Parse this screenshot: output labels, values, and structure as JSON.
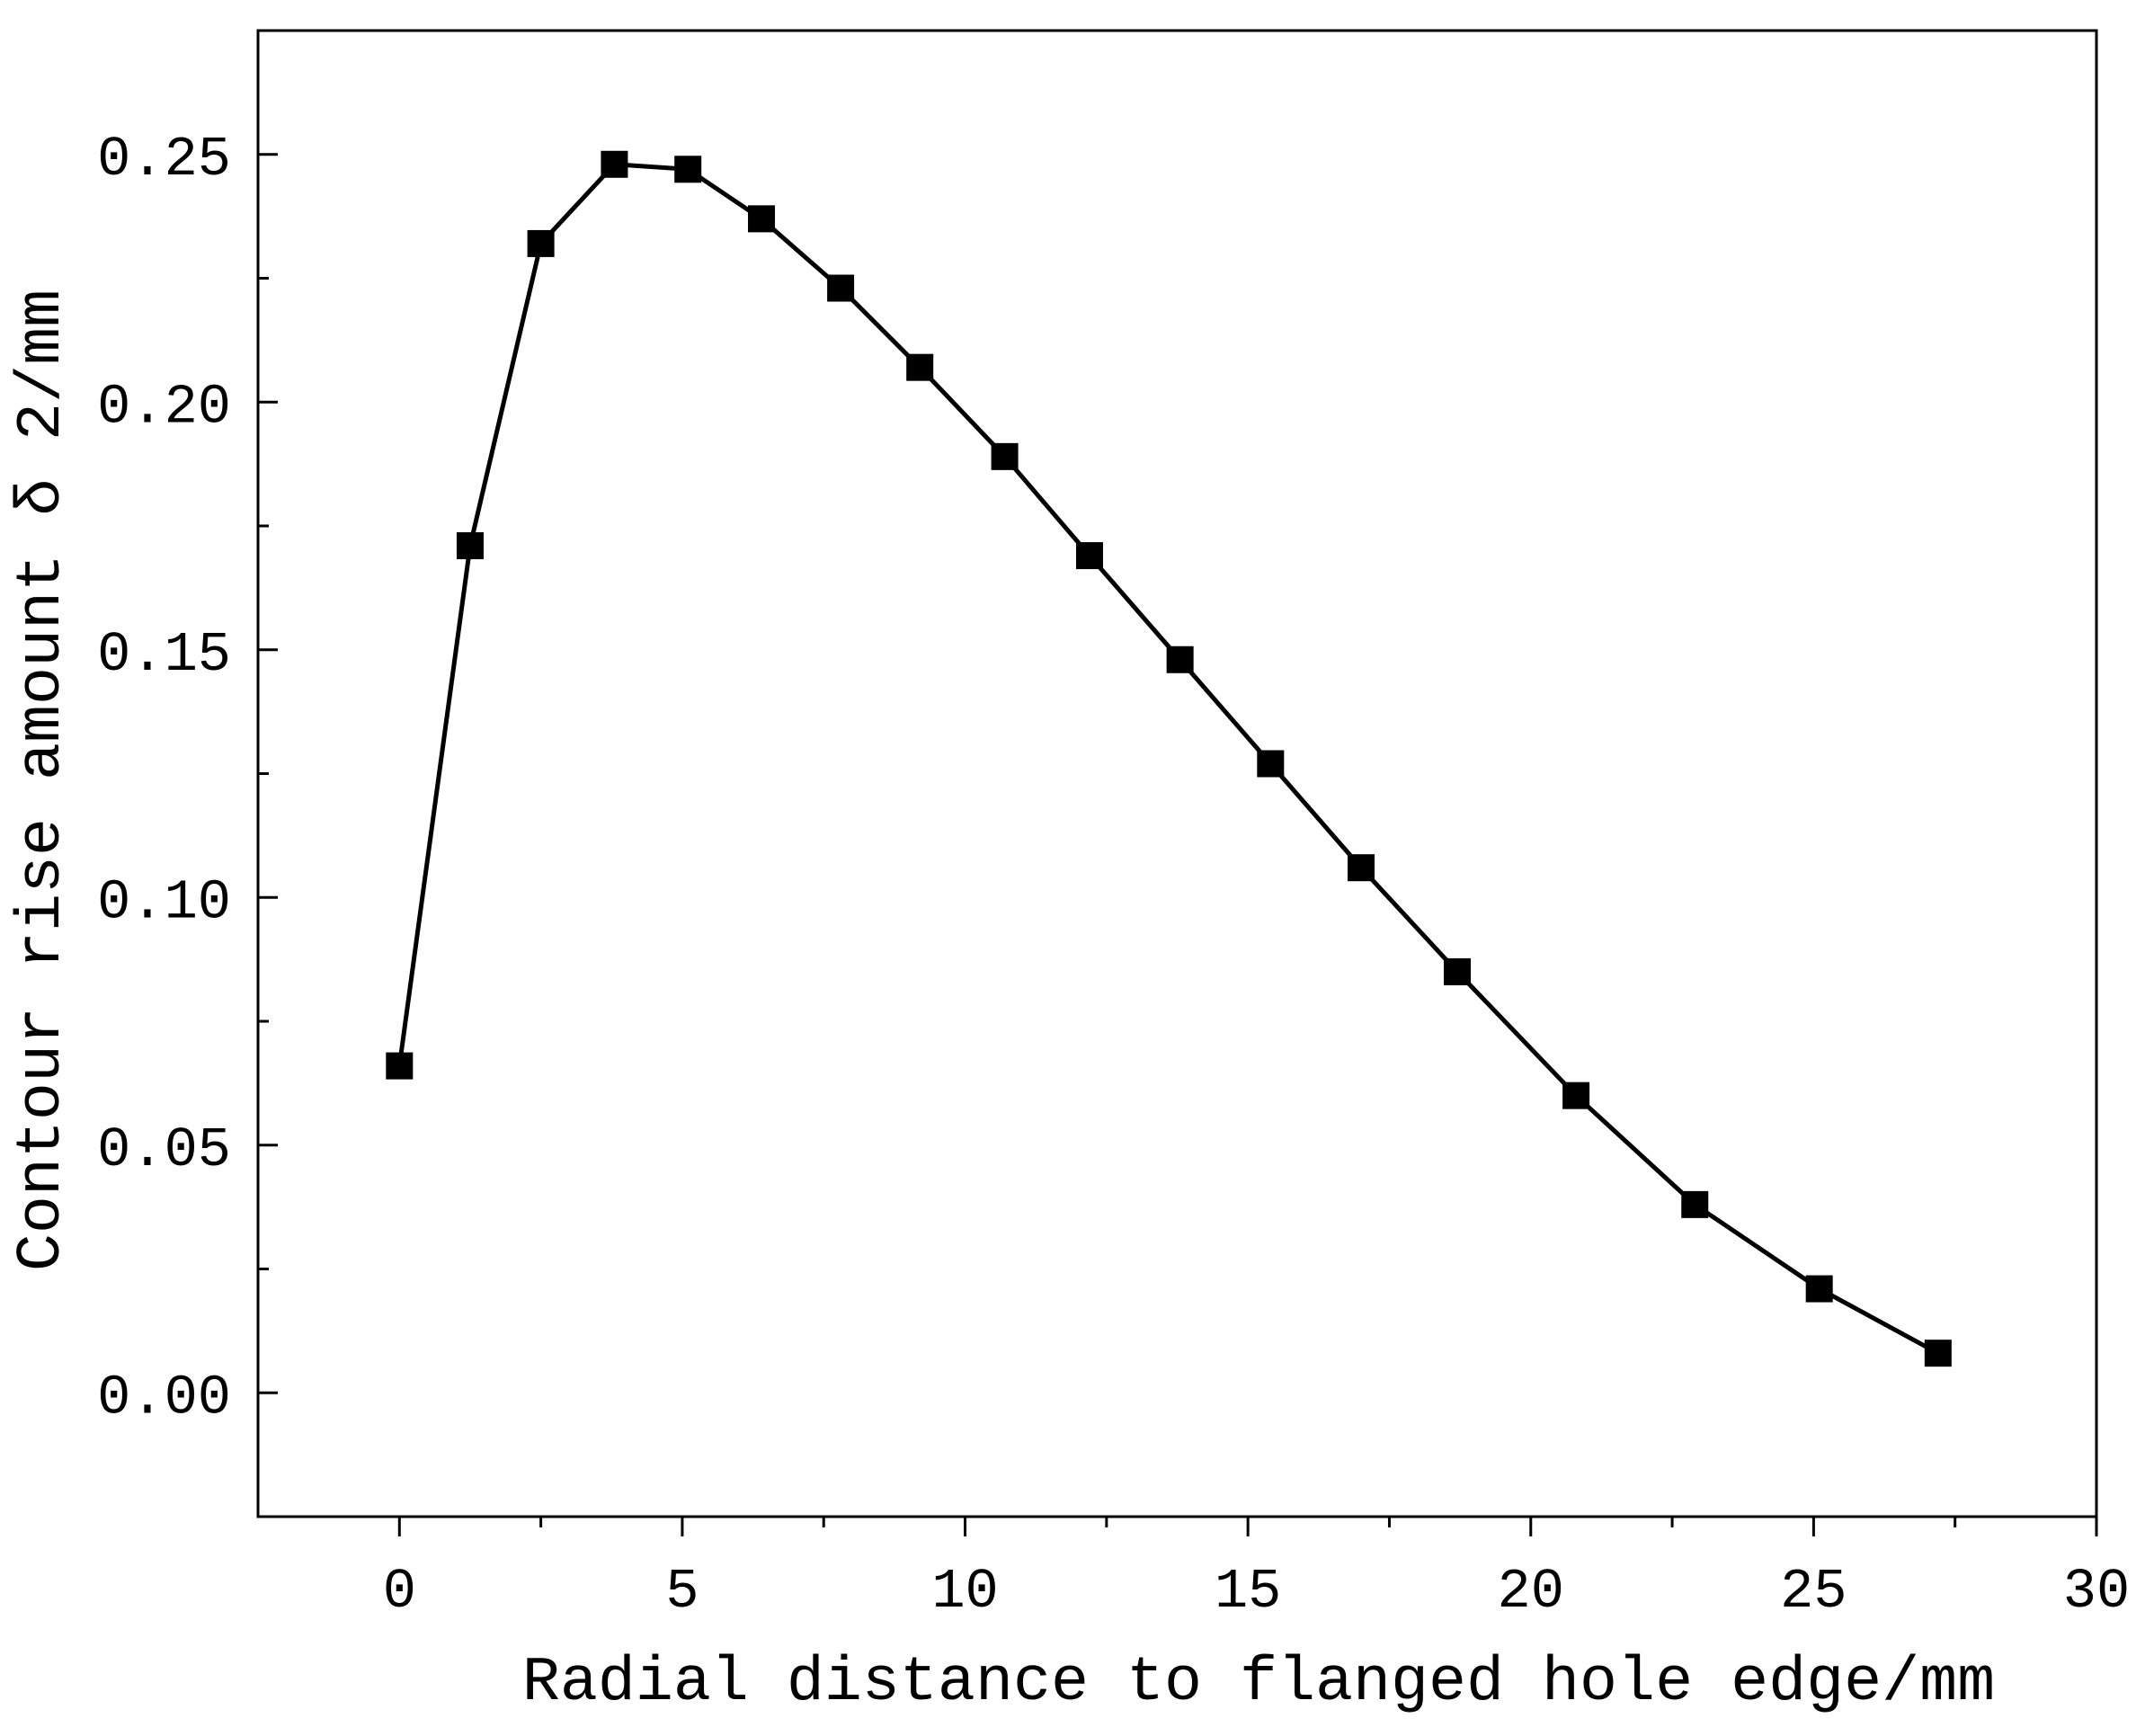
{
  "chart_data": {
    "type": "line",
    "title": "",
    "xlabel": "Radial distance to flanged hole edge/mm",
    "ylabel": "Contour rise amount δ 2/mm",
    "xlim": [
      -2.5,
      30
    ],
    "ylim": [
      -0.025,
      0.275
    ],
    "x_ticks": [
      0,
      5,
      10,
      15,
      20,
      25,
      30
    ],
    "y_ticks": [
      0.0,
      0.05,
      0.1,
      0.15,
      0.2,
      0.25
    ],
    "x_tick_labels": [
      "0",
      "5",
      "10",
      "15",
      "20",
      "25",
      "30"
    ],
    "y_tick_labels": [
      "0.00",
      "0.05",
      "0.10",
      "0.15",
      "0.20",
      "0.25"
    ],
    "grid": false,
    "marker": "square",
    "colors": {
      "line": "#000000",
      "marker": "#000000",
      "axis": "#000000"
    },
    "series": [
      {
        "x": [
          0,
          1.25,
          2.5,
          3.8,
          5.1,
          6.4,
          7.8,
          9.2,
          10.7,
          12.2,
          13.8,
          15.4,
          17.0,
          18.7,
          20.8,
          22.9,
          25.1,
          27.2
        ],
        "y": [
          0.066,
          0.171,
          0.232,
          0.248,
          0.247,
          0.237,
          0.223,
          0.207,
          0.189,
          0.169,
          0.148,
          0.127,
          0.106,
          0.085,
          0.06,
          0.038,
          0.021,
          0.008
        ]
      }
    ]
  }
}
